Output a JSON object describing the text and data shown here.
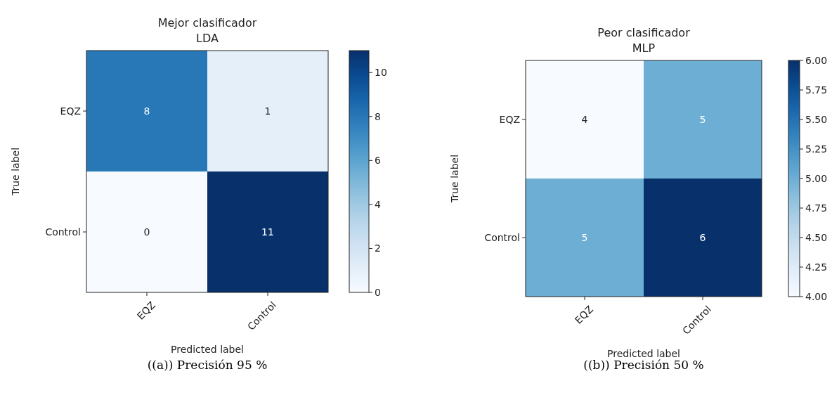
{
  "chart_data": [
    {
      "type": "heatmap",
      "title": "Mejor clasificador",
      "subtitle": "LDA",
      "xlabel": "Predicted label",
      "ylabel": "True label",
      "categories": [
        "EQZ",
        "Control"
      ],
      "y_categories": [
        "EQZ",
        "Control"
      ],
      "cells": [
        [
          8,
          1
        ],
        [
          0,
          11
        ]
      ],
      "data_labels": true,
      "clim": [
        0,
        11
      ],
      "cticks": [
        0,
        2,
        4,
        6,
        8,
        10
      ],
      "annotations": [
        "((a)) Precisión 95 %"
      ]
    },
    {
      "type": "heatmap",
      "title": "Peor clasificador",
      "subtitle": "MLP",
      "xlabel": "Predicted label",
      "ylabel": "True label",
      "categories": [
        "EQZ",
        "Control"
      ],
      "y_categories": [
        "EQZ",
        "Control"
      ],
      "cells": [
        [
          4,
          5
        ],
        [
          5,
          6
        ]
      ],
      "data_labels": true,
      "clim": [
        4,
        6
      ],
      "cticks": [
        {
          "value": 4,
          "label": "4.00"
        },
        {
          "value": 4.25,
          "label": "4.25"
        },
        {
          "value": 4.5,
          "label": "4.50"
        },
        {
          "value": 4.75,
          "label": "4.75"
        },
        {
          "value": 5,
          "label": "5.00"
        },
        {
          "value": 5.25,
          "label": "5.25"
        },
        {
          "value": 5.5,
          "label": "5.50"
        },
        {
          "value": 5.75,
          "label": "5.75"
        },
        {
          "value": 6,
          "label": "6.00"
        }
      ],
      "annotations": [
        "((b)) Precisión 50 %"
      ]
    }
  ]
}
